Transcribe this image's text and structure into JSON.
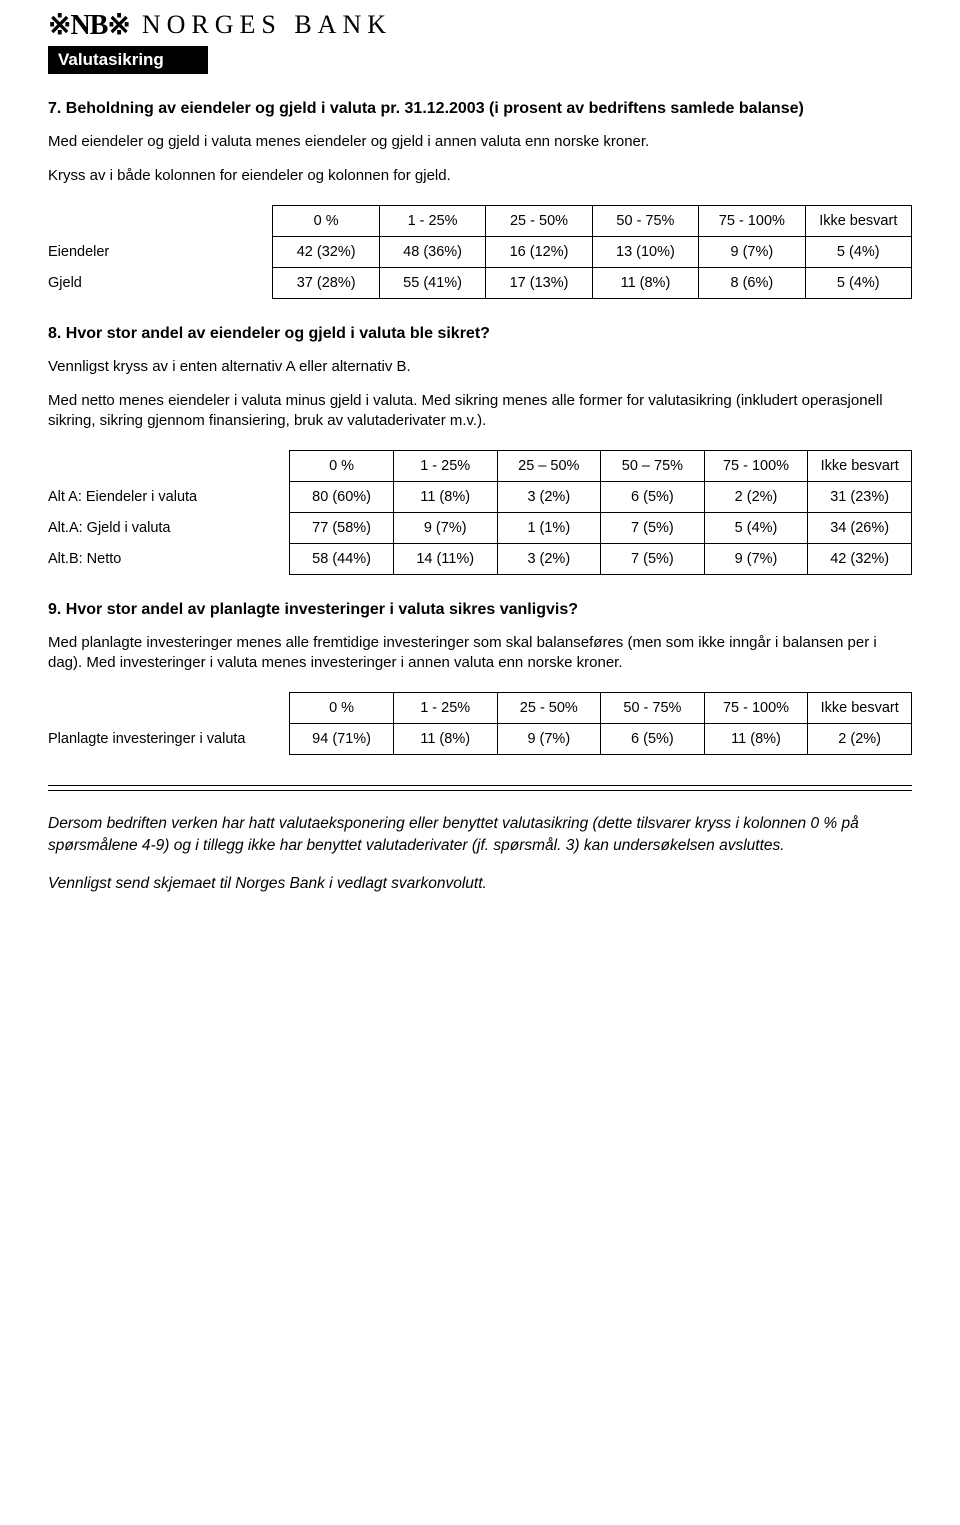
{
  "header": {
    "logo_mark": "※NB※",
    "logo_text": "NORGES BANK",
    "banner": "Valutasikring"
  },
  "q7": {
    "title": "7. Beholdning av eiendeler og gjeld i valuta pr. 31.12.2003 (i prosent av bedriftens samlede balanse)",
    "p1": "Med eiendeler og gjeld i valuta menes eiendeler og gjeld i annen valuta enn norske kroner.",
    "p2": "Kryss av i både kolonnen for eiendeler og kolonnen for gjeld.",
    "table": {
      "columns": [
        "0 %",
        "1 - 25%",
        "25 - 50%",
        "50 - 75%",
        "75 - 100%",
        "Ikke besvart"
      ],
      "rows": [
        {
          "label": "Eiendeler",
          "cells": [
            "42 (32%)",
            "48 (36%)",
            "16 (12%)",
            "13 (10%)",
            "9 (7%)",
            "5 (4%)"
          ]
        },
        {
          "label": "Gjeld",
          "cells": [
            "37 (28%)",
            "55 (41%)",
            "17 (13%)",
            "11 (8%)",
            "8 (6%)",
            "5 (4%)"
          ]
        }
      ]
    }
  },
  "q8": {
    "title": "8. Hvor stor andel av eiendeler og gjeld i valuta ble sikret?",
    "p1": "Vennligst kryss av i enten alternativ A eller alternativ B.",
    "p2": "Med netto menes eiendeler i valuta minus gjeld i valuta. Med sikring menes alle former for valutasikring (inkludert operasjonell sikring, sikring gjennom finansiering, bruk av valutaderivater m.v.).",
    "table": {
      "columns": [
        "0 %",
        "1 - 25%",
        "25 – 50%",
        "50 – 75%",
        "75 - 100%",
        "Ikke besvart"
      ],
      "rows": [
        {
          "label": "Alt A: Eiendeler i valuta",
          "cells": [
            "80 (60%)",
            "11 (8%)",
            "3 (2%)",
            "6 (5%)",
            "2 (2%)",
            "31 (23%)"
          ]
        },
        {
          "label": "Alt.A: Gjeld i valuta",
          "cells": [
            "77 (58%)",
            "9 (7%)",
            "1 (1%)",
            "7 (5%)",
            "5 (4%)",
            "34 (26%)"
          ]
        },
        {
          "label": "Alt.B: Netto",
          "cells": [
            "58 (44%)",
            "14 (11%)",
            "3 (2%)",
            "7 (5%)",
            "9 (7%)",
            "42 (32%)"
          ]
        }
      ]
    }
  },
  "q9": {
    "title": "9. Hvor stor andel av planlagte investeringer i valuta sikres vanligvis?",
    "p1": "Med planlagte investeringer menes alle fremtidige investeringer som skal balanseføres (men som ikke inngår i balansen per i dag). Med investeringer i valuta menes investeringer i annen valuta enn norske kroner.",
    "table": {
      "columns": [
        "0 %",
        "1 - 25%",
        "25 - 50%",
        "50 - 75%",
        "75 - 100%",
        "Ikke besvart"
      ],
      "rows": [
        {
          "label": "Planlagte investeringer i valuta",
          "cells": [
            "94 (71%)",
            "11 (8%)",
            "9 (7%)",
            "6 (5%)",
            "11 (8%)",
            "2 (2%)"
          ]
        }
      ]
    }
  },
  "footer": {
    "p1": "Dersom bedriften verken har hatt valutaeksponering eller benyttet valutasikring (dette tilsvarer kryss i kolonnen 0 % på spørsmålene 4-9) og i tillegg ikke har benyttet valutaderivater (jf. spørsmål. 3) kan undersøkelsen avsluttes.",
    "p2": "Vennligst send skjemaet til Norges Bank i vedlagt svarkonvolutt."
  }
}
